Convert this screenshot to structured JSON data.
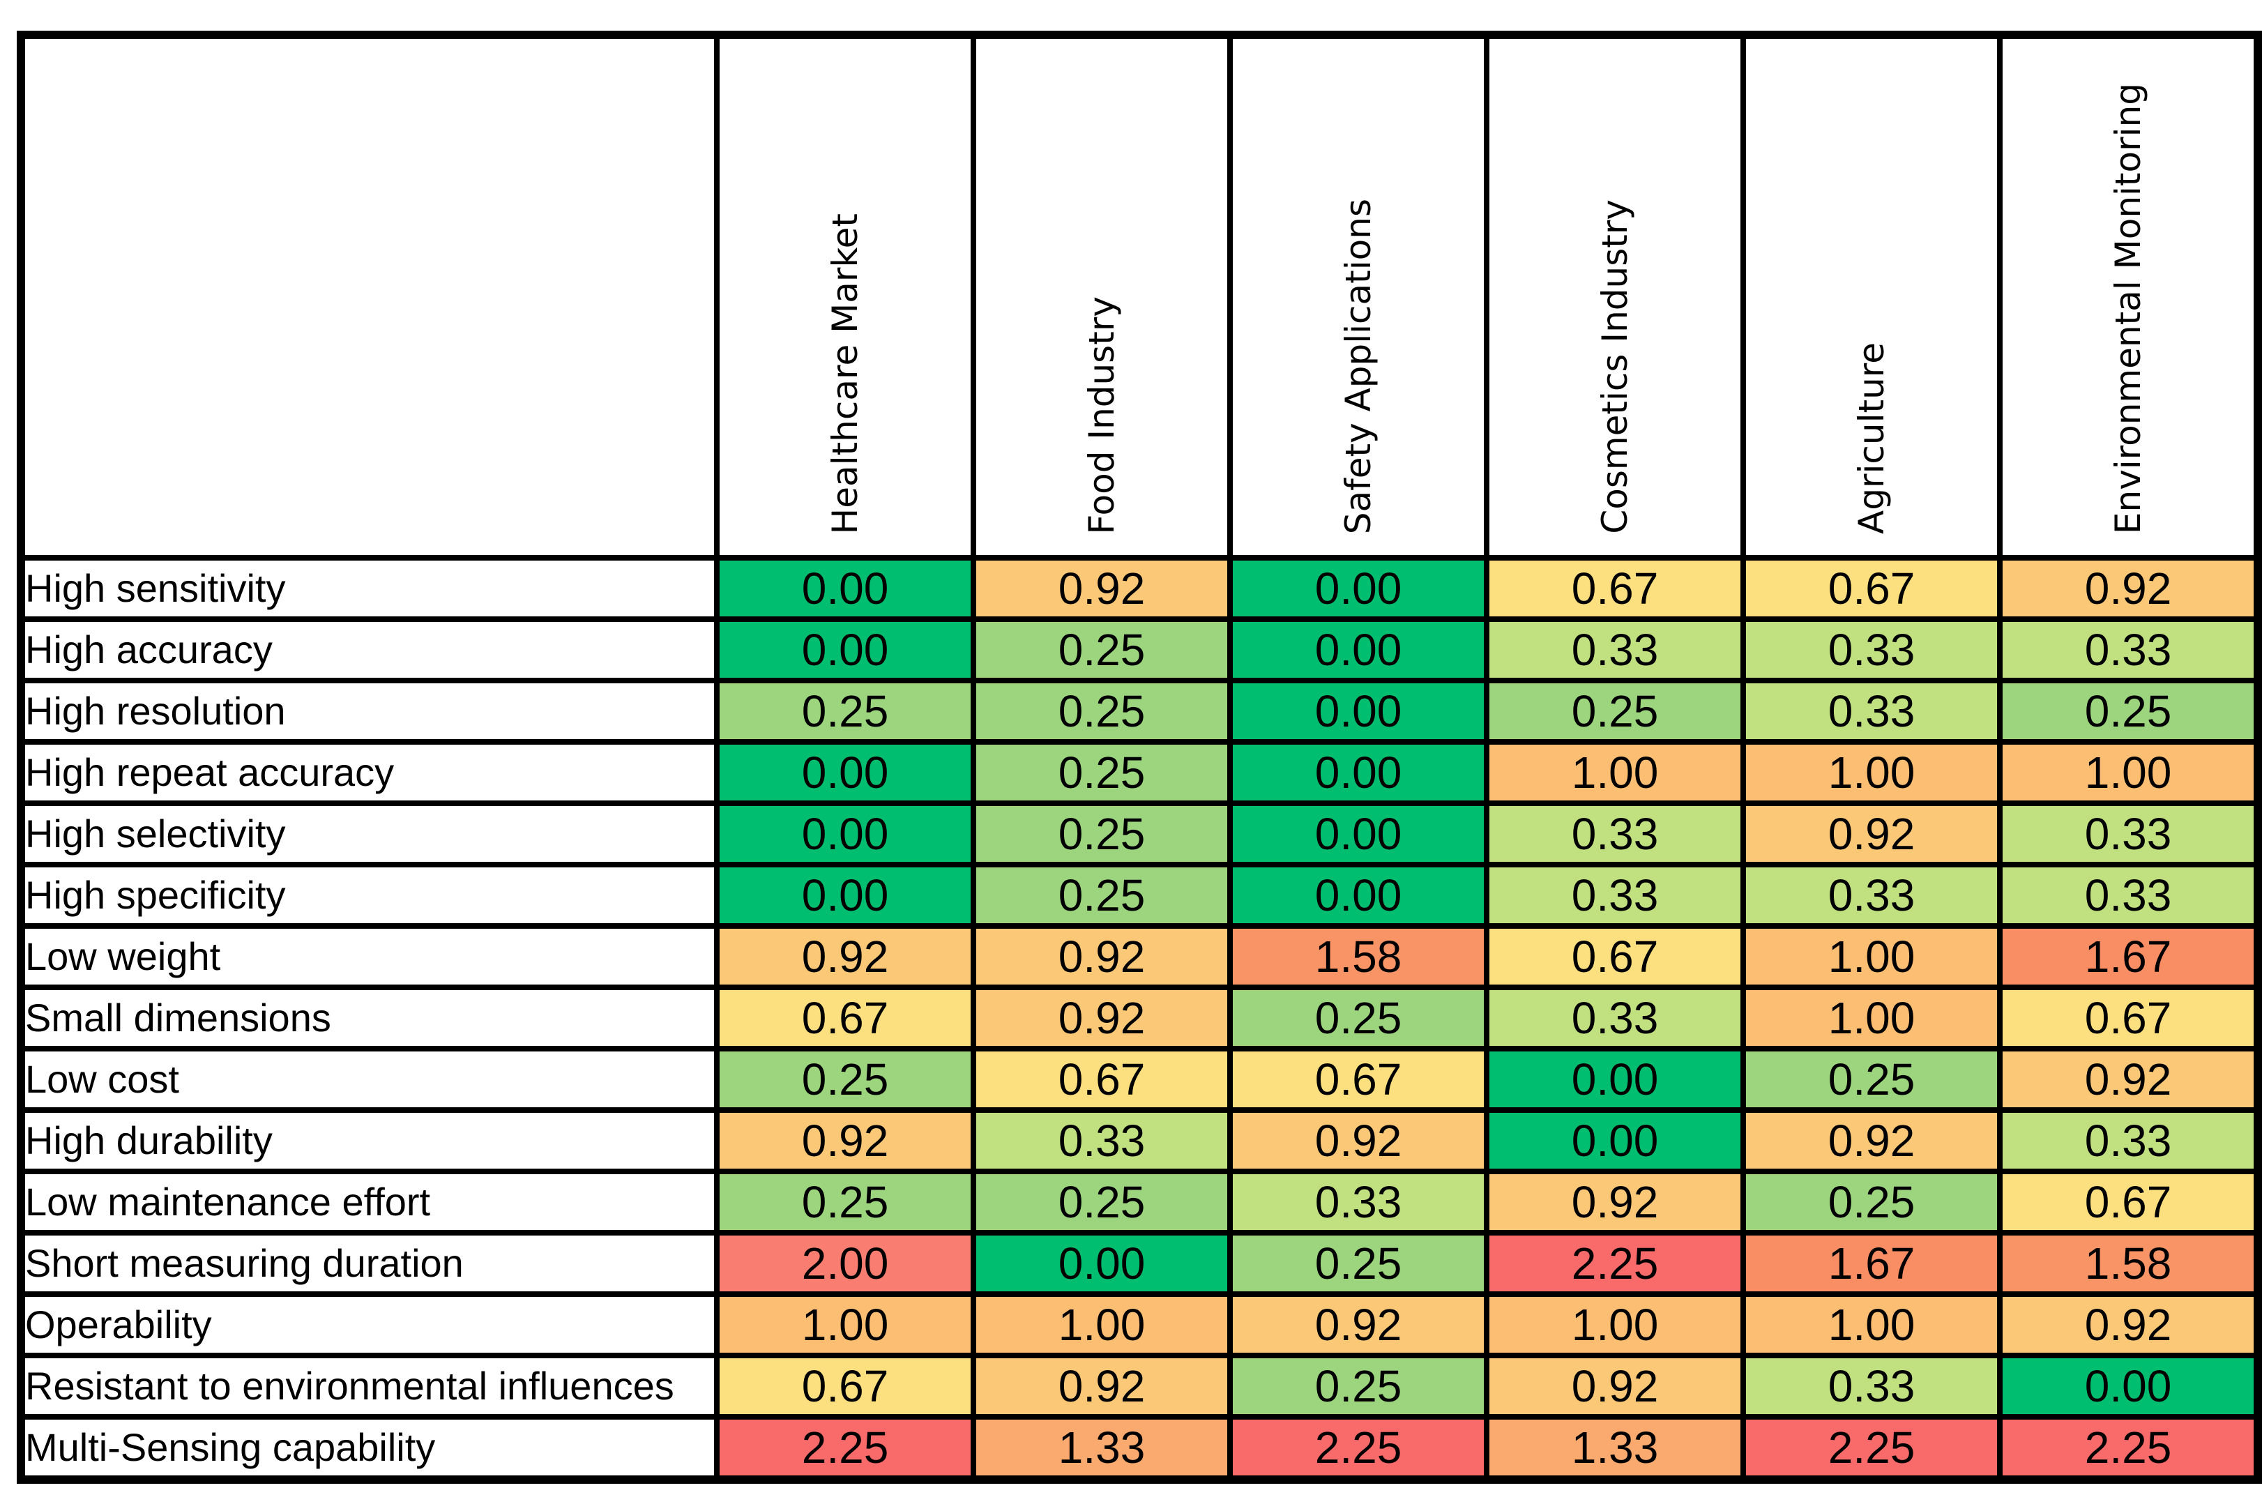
{
  "matrix": {
    "columns": [
      "Healthcare Market",
      "Food Industry",
      "Safety Applications",
      "Cosmetics Industry",
      "Agriculture",
      "Environmental Monitoring"
    ],
    "rows": [
      {
        "label": "High sensitivity",
        "values": [
          "0.00",
          "0.92",
          "0.00",
          "0.67",
          "0.67",
          "0.92"
        ]
      },
      {
        "label": "High accuracy",
        "values": [
          "0.00",
          "0.25",
          "0.00",
          "0.33",
          "0.33",
          "0.33"
        ]
      },
      {
        "label": "High resolution",
        "values": [
          "0.25",
          "0.25",
          "0.00",
          "0.25",
          "0.33",
          "0.25"
        ]
      },
      {
        "label": "High repeat accuracy",
        "values": [
          "0.00",
          "0.25",
          "0.00",
          "1.00",
          "1.00",
          "1.00"
        ]
      },
      {
        "label": "High selectivity",
        "values": [
          "0.00",
          "0.25",
          "0.00",
          "0.33",
          "0.92",
          "0.33"
        ]
      },
      {
        "label": "High specificity",
        "values": [
          "0.00",
          "0.25",
          "0.00",
          "0.33",
          "0.33",
          "0.33"
        ]
      },
      {
        "label": "Low weight",
        "values": [
          "0.92",
          "0.92",
          "1.58",
          "0.67",
          "1.00",
          "1.67"
        ]
      },
      {
        "label": "Small dimensions",
        "values": [
          "0.67",
          "0.92",
          "0.25",
          "0.33",
          "1.00",
          "0.67"
        ]
      },
      {
        "label": "Low cost",
        "values": [
          "0.25",
          "0.67",
          "0.67",
          "0.00",
          "0.25",
          "0.92"
        ]
      },
      {
        "label": "High durability",
        "values": [
          "0.92",
          "0.33",
          "0.92",
          "0.00",
          "0.92",
          "0.33"
        ]
      },
      {
        "label": "Low maintenance effort",
        "values": [
          "0.25",
          "0.25",
          "0.33",
          "0.92",
          "0.25",
          "0.67"
        ]
      },
      {
        "label": "Short measuring duration",
        "values": [
          "2.00",
          "0.00",
          "0.25",
          "2.25",
          "1.67",
          "1.58"
        ]
      },
      {
        "label": "Operability",
        "values": [
          "1.00",
          "1.00",
          "0.92",
          "1.00",
          "1.00",
          "0.92"
        ]
      },
      {
        "label": "Resistant to environmental influences",
        "values": [
          "0.67",
          "0.92",
          "0.25",
          "0.92",
          "0.33",
          "0.00"
        ]
      },
      {
        "label": "Multi-Sensing capability",
        "values": [
          "2.25",
          "1.33",
          "2.25",
          "1.33",
          "2.25",
          "2.25"
        ]
      }
    ]
  },
  "value_colors": {
    "0.00": "#00BE70",
    "0.25": "#9CD57E",
    "0.33": "#C1E07F",
    "0.67": "#FCDF7F",
    "0.92": "#FBC877",
    "1.00": "#FBBE72",
    "1.33": "#FAAA6E",
    "1.58": "#F99467",
    "1.67": "#F98E65",
    "2.00": "#F97E71",
    "2.25": "#F96A6A"
  },
  "style_colors": {
    "grid_border": "#000000",
    "text": "#000000",
    "background": "#ffffff"
  },
  "chart_data": {
    "type": "heatmap",
    "title": "",
    "x_labels": [
      "Healthcare Market",
      "Food Industry",
      "Safety Applications",
      "Cosmetics Industry",
      "Agriculture",
      "Environmental Monitoring"
    ],
    "y_labels": [
      "High sensitivity",
      "High accuracy",
      "High resolution",
      "High repeat accuracy",
      "High selectivity",
      "High specificity",
      "Low weight",
      "Small dimensions",
      "Low cost",
      "High durability",
      "Low maintenance effort",
      "Short measuring duration",
      "Operability",
      "Resistant to environmental influences",
      "Multi-Sensing capability"
    ],
    "values": [
      [
        0.0,
        0.92,
        0.0,
        0.67,
        0.67,
        0.92
      ],
      [
        0.0,
        0.25,
        0.0,
        0.33,
        0.33,
        0.33
      ],
      [
        0.25,
        0.25,
        0.0,
        0.25,
        0.33,
        0.25
      ],
      [
        0.0,
        0.25,
        0.0,
        1.0,
        1.0,
        1.0
      ],
      [
        0.0,
        0.25,
        0.0,
        0.33,
        0.92,
        0.33
      ],
      [
        0.0,
        0.25,
        0.0,
        0.33,
        0.33,
        0.33
      ],
      [
        0.92,
        0.92,
        1.58,
        0.67,
        1.0,
        1.67
      ],
      [
        0.67,
        0.92,
        0.25,
        0.33,
        1.0,
        0.67
      ],
      [
        0.25,
        0.67,
        0.67,
        0.0,
        0.25,
        0.92
      ],
      [
        0.92,
        0.33,
        0.92,
        0.0,
        0.92,
        0.33
      ],
      [
        0.25,
        0.25,
        0.33,
        0.92,
        0.25,
        0.67
      ],
      [
        2.0,
        0.0,
        0.25,
        2.25,
        1.67,
        1.58
      ],
      [
        1.0,
        1.0,
        0.92,
        1.0,
        1.0,
        0.92
      ],
      [
        0.67,
        0.92,
        0.25,
        0.92,
        0.33,
        0.0
      ],
      [
        2.25,
        1.33,
        2.25,
        1.33,
        2.25,
        2.25
      ]
    ],
    "value_range": [
      0.0,
      2.25
    ],
    "color_scale": "green (low) -> yellow -> orange -> red (high)",
    "grid": true,
    "legend_position": "none",
    "cell_value_format": "0.00"
  }
}
